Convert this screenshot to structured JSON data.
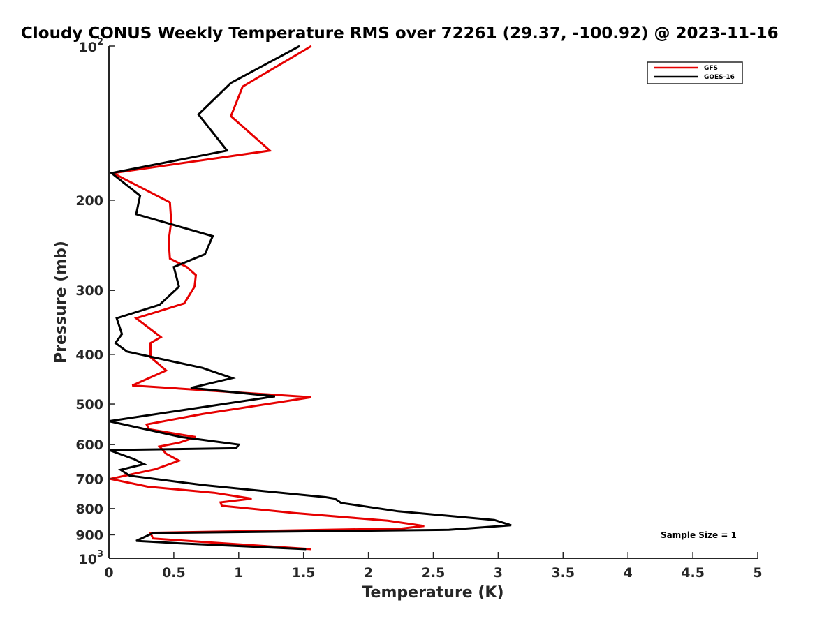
{
  "chart_data": {
    "type": "line",
    "title": "Cloudy CONUS Weekly Temperature RMS over 72261 (29.37, -100.92) @ 2023-11-16",
    "xlabel": "Temperature (K)",
    "ylabel": "Pressure (mb)",
    "xlim": [
      0,
      5
    ],
    "ylim": [
      1000,
      100
    ],
    "y_scale": "log",
    "y_reversed": true,
    "grid": false,
    "legend_position": "top-right",
    "x_ticks": [
      0,
      0.5,
      1,
      1.5,
      2,
      2.5,
      3,
      3.5,
      4,
      4.5,
      5
    ],
    "x_tick_labels": [
      "0",
      "0.5",
      "1",
      "1.5",
      "2",
      "2.5",
      "3",
      "3.5",
      "4",
      "4.5",
      "5"
    ],
    "y_ticks": [
      100,
      200,
      300,
      400,
      500,
      600,
      700,
      800,
      900,
      1000
    ],
    "y_tick_labels": [
      {
        "text": "10",
        "sup": "2"
      },
      {
        "text": "200"
      },
      {
        "text": "300"
      },
      {
        "text": "400"
      },
      {
        "text": "500"
      },
      {
        "text": "600"
      },
      {
        "text": "700"
      },
      {
        "text": "800"
      },
      {
        "text": "900"
      },
      {
        "text": "10",
        "sup": "3"
      }
    ],
    "annotation": "Sample Size = 1",
    "series": [
      {
        "name": "GFS",
        "color": "#e60000",
        "x": [
          1.56,
          1.03,
          0.94,
          1.24,
          0.03,
          0.47,
          0.48,
          0.46,
          0.47,
          0.6,
          0.67,
          0.66,
          0.58,
          0.21,
          0.4,
          0.32,
          0.32,
          0.44,
          0.18,
          1.56,
          0.72,
          0.29,
          0.31,
          0.67,
          0.54,
          0.39,
          0.44,
          0.54,
          0.36,
          0.01,
          0.3,
          0.81,
          1.1,
          0.86,
          0.87,
          1.43,
          2.15,
          2.43,
          2.26,
          0.32,
          0.34,
          0.74,
          1.56
        ],
        "y": [
          100,
          120,
          137,
          160,
          177,
          202,
          220,
          240,
          260,
          270,
          280,
          295,
          318,
          340,
          370,
          380,
          405,
          430,
          460,
          485,
          523,
          548,
          560,
          580,
          595,
          605,
          625,
          645,
          670,
          700,
          725,
          745,
          765,
          778,
          790,
          816,
          845,
          865,
          875,
          892,
          915,
          930,
          960
        ]
      },
      {
        "name": "GOES-16",
        "color": "#000000",
        "x": [
          1.47,
          0.94,
          0.69,
          0.91,
          0.02,
          0.24,
          0.21,
          0.8,
          0.74,
          0.5,
          0.54,
          0.39,
          0.06,
          0.1,
          0.05,
          0.14,
          0.72,
          0.95,
          0.63,
          1.28,
          0.0,
          0.56,
          1.0,
          0.98,
          0.0,
          0.19,
          0.27,
          0.09,
          0.16,
          0.73,
          1.67,
          1.74,
          1.79,
          2.23,
          2.97,
          3.1,
          2.62,
          0.34,
          0.21,
          0.54,
          1.52
        ],
        "y": [
          100,
          118,
          136,
          160,
          177,
          196,
          213,
          235,
          255,
          270,
          295,
          320,
          340,
          365,
          380,
          395,
          425,
          445,
          465,
          483,
          540,
          580,
          600,
          610,
          615,
          640,
          655,
          672,
          690,
          720,
          760,
          765,
          780,
          810,
          842,
          862,
          880,
          893,
          925,
          935,
          960
        ]
      }
    ]
  }
}
